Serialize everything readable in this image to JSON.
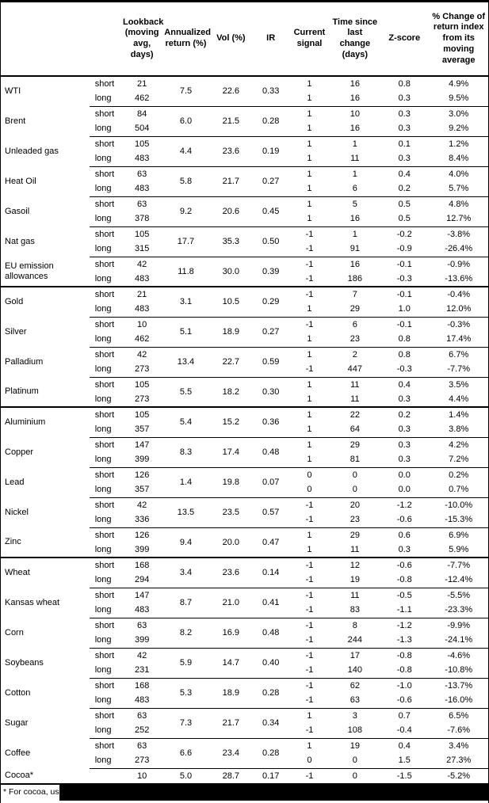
{
  "colors": {
    "text": "#000000",
    "background": "#ffffff",
    "rule": "#000000"
  },
  "table": {
    "columns": [
      {
        "key": "lookback",
        "label": "Lookback (moving avg, days)"
      },
      {
        "key": "ann",
        "label": "Annualized return (%)"
      },
      {
        "key": "vol",
        "label": "Vol (%)"
      },
      {
        "key": "ir",
        "label": "IR"
      },
      {
        "key": "signal",
        "label": "Current signal"
      },
      {
        "key": "time",
        "label": "Time since last change (days)"
      },
      {
        "key": "z",
        "label": "Z-score"
      },
      {
        "key": "pct",
        "label": "% Change of return index from its moving average"
      }
    ],
    "side_labels": {
      "short": "short",
      "long": "long"
    },
    "commodities": [
      {
        "name": "WTI",
        "section_start": false,
        "ann": "7.5",
        "vol": "22.6",
        "ir": "0.33",
        "rows": [
          {
            "side": "short",
            "lookback": "21",
            "signal": "1",
            "time": "16",
            "z": "0.8",
            "pct": "4.9%"
          },
          {
            "side": "long",
            "lookback": "462",
            "signal": "1",
            "time": "16",
            "z": "0.3",
            "pct": "9.5%"
          }
        ]
      },
      {
        "name": "Brent",
        "section_start": false,
        "ann": "6.0",
        "vol": "21.5",
        "ir": "0.28",
        "rows": [
          {
            "side": "short",
            "lookback": "84",
            "signal": "1",
            "time": "10",
            "z": "0.3",
            "pct": "3.0%"
          },
          {
            "side": "long",
            "lookback": "504",
            "signal": "1",
            "time": "16",
            "z": "0.3",
            "pct": "9.2%"
          }
        ]
      },
      {
        "name": "Unleaded gas",
        "section_start": false,
        "ann": "4.4",
        "vol": "23.6",
        "ir": "0.19",
        "rows": [
          {
            "side": "short",
            "lookback": "105",
            "signal": "1",
            "time": "1",
            "z": "0.1",
            "pct": "1.2%"
          },
          {
            "side": "long",
            "lookback": "483",
            "signal": "1",
            "time": "11",
            "z": "0.3",
            "pct": "8.4%"
          }
        ]
      },
      {
        "name": "Heat Oil",
        "section_start": false,
        "ann": "5.8",
        "vol": "21.7",
        "ir": "0.27",
        "rows": [
          {
            "side": "short",
            "lookback": "63",
            "signal": "1",
            "time": "1",
            "z": "0.4",
            "pct": "4.0%"
          },
          {
            "side": "long",
            "lookback": "483",
            "signal": "1",
            "time": "6",
            "z": "0.2",
            "pct": "5.7%"
          }
        ]
      },
      {
        "name": "Gasoil",
        "section_start": false,
        "ann": "9.2",
        "vol": "20.6",
        "ir": "0.45",
        "rows": [
          {
            "side": "short",
            "lookback": "63",
            "signal": "1",
            "time": "5",
            "z": "0.5",
            "pct": "4.8%"
          },
          {
            "side": "long",
            "lookback": "378",
            "signal": "1",
            "time": "16",
            "z": "0.5",
            "pct": "12.7%"
          }
        ]
      },
      {
        "name": "Nat gas",
        "section_start": false,
        "ann": "17.7",
        "vol": "35.3",
        "ir": "0.50",
        "rows": [
          {
            "side": "short",
            "lookback": "105",
            "signal": "-1",
            "time": "1",
            "z": "-0.2",
            "pct": "-3.8%"
          },
          {
            "side": "long",
            "lookback": "315",
            "signal": "-1",
            "time": "91",
            "z": "-0.9",
            "pct": "-26.4%"
          }
        ]
      },
      {
        "name": "EU emission allowances",
        "section_start": false,
        "ann": "11.8",
        "vol": "30.0",
        "ir": "0.39",
        "rows": [
          {
            "side": "short",
            "lookback": "42",
            "signal": "-1",
            "time": "16",
            "z": "-0.1",
            "pct": "-0.9%"
          },
          {
            "side": "long",
            "lookback": "483",
            "signal": "-1",
            "time": "186",
            "z": "-0.3",
            "pct": "-13.6%"
          }
        ]
      },
      {
        "name": "Gold",
        "section_start": true,
        "ann": "3.1",
        "vol": "10.5",
        "ir": "0.29",
        "rows": [
          {
            "side": "short",
            "lookback": "21",
            "signal": "-1",
            "time": "7",
            "z": "-0.1",
            "pct": "-0.4%"
          },
          {
            "side": "long",
            "lookback": "483",
            "signal": "1",
            "time": "29",
            "z": "1.0",
            "pct": "12.0%"
          }
        ]
      },
      {
        "name": "Silver",
        "section_start": false,
        "ann": "5.1",
        "vol": "18.9",
        "ir": "0.27",
        "rows": [
          {
            "side": "short",
            "lookback": "10",
            "signal": "-1",
            "time": "6",
            "z": "-0.1",
            "pct": "-0.3%"
          },
          {
            "side": "long",
            "lookback": "462",
            "signal": "1",
            "time": "23",
            "z": "0.8",
            "pct": "17.4%"
          }
        ]
      },
      {
        "name": "Palladium",
        "section_start": false,
        "ann": "13.4",
        "vol": "22.7",
        "ir": "0.59",
        "rows": [
          {
            "side": "short",
            "lookback": "42",
            "signal": "1",
            "time": "2",
            "z": "0.8",
            "pct": "6.7%"
          },
          {
            "side": "long",
            "lookback": "273",
            "signal": "-1",
            "time": "447",
            "z": "-0.3",
            "pct": "-7.7%"
          }
        ]
      },
      {
        "name": "Platinum",
        "section_start": false,
        "ann": "5.5",
        "vol": "18.2",
        "ir": "0.30",
        "rows": [
          {
            "side": "short",
            "lookback": "105",
            "signal": "1",
            "time": "11",
            "z": "0.4",
            "pct": "3.5%"
          },
          {
            "side": "long",
            "lookback": "273",
            "signal": "1",
            "time": "11",
            "z": "0.3",
            "pct": "4.4%"
          }
        ]
      },
      {
        "name": "Aluminium",
        "section_start": true,
        "ann": "5.4",
        "vol": "15.2",
        "ir": "0.36",
        "rows": [
          {
            "side": "short",
            "lookback": "105",
            "signal": "1",
            "time": "22",
            "z": "0.2",
            "pct": "1.4%"
          },
          {
            "side": "long",
            "lookback": "357",
            "signal": "1",
            "time": "64",
            "z": "0.3",
            "pct": "3.8%"
          }
        ]
      },
      {
        "name": "Copper",
        "section_start": false,
        "ann": "8.3",
        "vol": "17.4",
        "ir": "0.48",
        "rows": [
          {
            "side": "short",
            "lookback": "147",
            "signal": "1",
            "time": "29",
            "z": "0.3",
            "pct": "4.2%"
          },
          {
            "side": "long",
            "lookback": "399",
            "signal": "1",
            "time": "81",
            "z": "0.3",
            "pct": "7.2%"
          }
        ]
      },
      {
        "name": "Lead",
        "section_start": false,
        "ann": "1.4",
        "vol": "19.8",
        "ir": "0.07",
        "rows": [
          {
            "side": "short",
            "lookback": "126",
            "signal": "0",
            "time": "0",
            "z": "0.0",
            "pct": "0.2%"
          },
          {
            "side": "long",
            "lookback": "357",
            "signal": "0",
            "time": "0",
            "z": "0.0",
            "pct": "0.7%"
          }
        ]
      },
      {
        "name": "Nickel",
        "section_start": false,
        "ann": "13.5",
        "vol": "23.5",
        "ir": "0.57",
        "rows": [
          {
            "side": "short",
            "lookback": "42",
            "signal": "-1",
            "time": "20",
            "z": "-1.2",
            "pct": "-10.0%"
          },
          {
            "side": "long",
            "lookback": "336",
            "signal": "-1",
            "time": "23",
            "z": "-0.6",
            "pct": "-15.3%"
          }
        ]
      },
      {
        "name": "Zinc",
        "section_start": false,
        "ann": "9.4",
        "vol": "20.0",
        "ir": "0.47",
        "rows": [
          {
            "side": "short",
            "lookback": "126",
            "signal": "1",
            "time": "29",
            "z": "0.6",
            "pct": "6.9%"
          },
          {
            "side": "long",
            "lookback": "399",
            "signal": "1",
            "time": "11",
            "z": "0.3",
            "pct": "5.9%"
          }
        ]
      },
      {
        "name": "Wheat",
        "section_start": true,
        "ann": "3.4",
        "vol": "23.6",
        "ir": "0.14",
        "rows": [
          {
            "side": "short",
            "lookback": "168",
            "signal": "-1",
            "time": "12",
            "z": "-0.6",
            "pct": "-7.7%"
          },
          {
            "side": "long",
            "lookback": "294",
            "signal": "-1",
            "time": "19",
            "z": "-0.8",
            "pct": "-12.4%"
          }
        ]
      },
      {
        "name": "Kansas wheat",
        "section_start": false,
        "ann": "8.7",
        "vol": "21.0",
        "ir": "0.41",
        "rows": [
          {
            "side": "short",
            "lookback": "147",
            "signal": "-1",
            "time": "11",
            "z": "-0.5",
            "pct": "-5.5%"
          },
          {
            "side": "long",
            "lookback": "483",
            "signal": "-1",
            "time": "83",
            "z": "-1.1",
            "pct": "-23.3%"
          }
        ]
      },
      {
        "name": "Corn",
        "section_start": false,
        "ann": "8.2",
        "vol": "16.9",
        "ir": "0.48",
        "rows": [
          {
            "side": "short",
            "lookback": "63",
            "signal": "-1",
            "time": "8",
            "z": "-1.2",
            "pct": "-9.9%"
          },
          {
            "side": "long",
            "lookback": "399",
            "signal": "-1",
            "time": "244",
            "z": "-1.3",
            "pct": "-24.1%"
          }
        ]
      },
      {
        "name": "Soybeans",
        "section_start": false,
        "ann": "5.9",
        "vol": "14.7",
        "ir": "0.40",
        "rows": [
          {
            "side": "short",
            "lookback": "42",
            "signal": "-1",
            "time": "17",
            "z": "-0.8",
            "pct": "-4.6%"
          },
          {
            "side": "long",
            "lookback": "231",
            "signal": "-1",
            "time": "140",
            "z": "-0.8",
            "pct": "-10.8%"
          }
        ]
      },
      {
        "name": "Cotton",
        "section_start": false,
        "ann": "5.3",
        "vol": "18.9",
        "ir": "0.28",
        "rows": [
          {
            "side": "short",
            "lookback": "168",
            "signal": "-1",
            "time": "62",
            "z": "-1.0",
            "pct": "-13.7%"
          },
          {
            "side": "long",
            "lookback": "483",
            "signal": "-1",
            "time": "63",
            "z": "-0.6",
            "pct": "-16.0%"
          }
        ]
      },
      {
        "name": "Sugar",
        "section_start": false,
        "ann": "7.3",
        "vol": "21.7",
        "ir": "0.34",
        "rows": [
          {
            "side": "short",
            "lookback": "63",
            "signal": "1",
            "time": "3",
            "z": "0.7",
            "pct": "6.5%"
          },
          {
            "side": "long",
            "lookback": "252",
            "signal": "-1",
            "time": "108",
            "z": "-0.4",
            "pct": "-7.6%"
          }
        ]
      },
      {
        "name": "Coffee",
        "section_start": false,
        "ann": "6.6",
        "vol": "23.4",
        "ir": "0.28",
        "rows": [
          {
            "side": "short",
            "lookback": "63",
            "signal": "1",
            "time": "19",
            "z": "0.4",
            "pct": "3.4%"
          },
          {
            "side": "long",
            "lookback": "273",
            "signal": "0",
            "time": "0",
            "z": "1.5",
            "pct": "27.3%"
          }
        ]
      },
      {
        "name": "Cocoa*",
        "section_start": false,
        "ann": "5.0",
        "vol": "28.7",
        "ir": "0.17",
        "rows": [
          {
            "side": "",
            "lookback": "10",
            "signal": "-1",
            "time": "0",
            "z": "-1.5",
            "pct": "-5.2%"
          }
        ]
      }
    ]
  },
  "footnote": {
    "text": "* For cocoa, uses c"
  }
}
